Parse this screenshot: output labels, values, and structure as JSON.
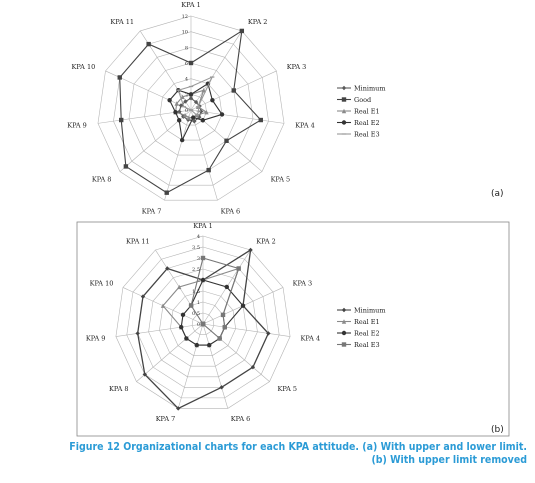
{
  "caption": {
    "line1": "Figure 12 Organizational charts for each KPA attitude. (a) With upper and lower limit.",
    "line2": "(b) With upper limit removed"
  },
  "chart_data": [
    {
      "type": "radar",
      "panel_label": "(a)",
      "categories": [
        "KPA 1",
        "KPA 2",
        "KPA 3",
        "KPA 4",
        "KPA 5",
        "KPA 6",
        "KPA 7",
        "KPA 8",
        "KPA 9",
        "KPA 10",
        "KPA 11"
      ],
      "rmax": 12,
      "ticks": [
        0,
        2,
        4,
        6,
        8,
        10,
        12
      ],
      "series": [
        {
          "name": "Minimum",
          "marker": "diamond",
          "color": "#5a5a5a",
          "values": [
            1.5,
            1.2,
            1.2,
            1.3,
            1.4,
            1.5,
            1.3,
            1.3,
            1.5,
            1.4,
            1.3
          ]
        },
        {
          "name": "Good",
          "marker": "square",
          "color": "#444444",
          "values": [
            6,
            12,
            6,
            9,
            6,
            8,
            11,
            11,
            9,
            10,
            10
          ]
        },
        {
          "name": "Real E1",
          "marker": "triangle",
          "color": "#8a8a8a",
          "values": [
            2,
            3,
            1,
            2,
            1,
            1,
            1,
            1,
            2,
            2,
            2
          ]
        },
        {
          "name": "Real E2",
          "marker": "circle",
          "color": "#333333",
          "values": [
            2,
            4,
            3,
            4,
            2,
            1,
            4,
            2,
            2,
            3,
            3
          ]
        },
        {
          "name": "Real E3",
          "marker": "dash",
          "color": "#999999",
          "values": [
            3,
            5,
            1,
            1,
            1,
            0,
            0,
            0,
            0,
            1,
            3
          ]
        }
      ],
      "legend": "right"
    },
    {
      "type": "radar",
      "panel_label": "(b)",
      "categories": [
        "KPA 1",
        "KPA 2",
        "KPA 3",
        "KPA 4",
        "KPA 5",
        "KPA 6",
        "KPA 7",
        "KPA 8",
        "KPA 9",
        "KPA 10",
        "KPA 11"
      ],
      "rmax": 4,
      "ticks": [
        0,
        0.5,
        1,
        1.5,
        2,
        2.5,
        3,
        3.5,
        4
      ],
      "series": [
        {
          "name": "Minimum",
          "marker": "diamond",
          "color": "#444444",
          "values": [
            2,
            4,
            2,
            3,
            3,
            3,
            4,
            3.5,
            3,
            3,
            3
          ]
        },
        {
          "name": "Real E1",
          "marker": "triangle",
          "color": "#8a8a8a",
          "values": [
            2,
            3,
            1,
            1,
            1,
            1,
            1,
            1,
            1,
            2,
            2
          ]
        },
        {
          "name": "Real E2",
          "marker": "circle",
          "color": "#333333",
          "values": [
            2,
            2,
            2,
            1,
            1,
            1,
            1,
            1,
            1,
            1,
            1
          ]
        },
        {
          "name": "Real E3",
          "marker": "square",
          "color": "#777777",
          "values": [
            3,
            3,
            1,
            1,
            1,
            0,
            0,
            0,
            0,
            0,
            1
          ]
        }
      ],
      "legend": "right"
    }
  ]
}
